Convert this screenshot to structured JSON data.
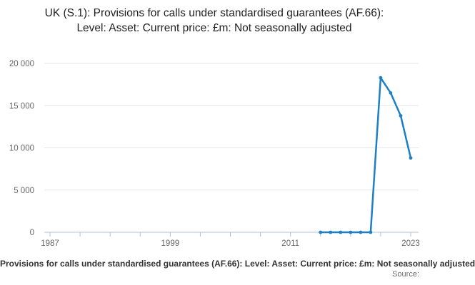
{
  "title": "UK (S.1): Provisions for calls under standardised guarantees (AF.66): Level: Asset: Current price: £m: Not seasonally adjusted",
  "footer": {
    "caption": "Provisions for calls under standardised guarantees (AF.66): Level: Asset: Current price: £m: Not seasonally adjusted",
    "source": "Source:"
  },
  "chart_data": {
    "type": "line",
    "title": "UK (S.1): Provisions for calls under standardised guarantees (AF.66): Level: Asset: Current price: £m: Not seasonally adjusted",
    "xlabel": "",
    "ylabel": "",
    "x": [
      2014,
      2015,
      2016,
      2017,
      2018,
      2019,
      2020,
      2021,
      2022,
      2023
    ],
    "values": [
      0,
      0,
      0,
      0,
      0,
      0,
      18300,
      16500,
      13800,
      8800
    ],
    "xlim": [
      1986.4,
      2023.8
    ],
    "ylim": [
      0,
      20000
    ],
    "x_ticks": [
      1987,
      1990,
      1993,
      1996,
      1999,
      2002,
      2005,
      2008,
      2011,
      2014,
      2017,
      2020,
      2023
    ],
    "x_axis_labels": [
      {
        "year": 1987,
        "label": "1987"
      },
      {
        "year": 1999,
        "label": "1999"
      },
      {
        "year": 2011,
        "label": "2011"
      },
      {
        "year": 2023,
        "label": "2023"
      }
    ],
    "y_ticks": [
      0,
      5000,
      10000,
      15000,
      20000
    ],
    "y_tick_labels": [
      "0",
      "5 000",
      "10 000",
      "15 000",
      "20 000"
    ],
    "grid": true,
    "legend": false,
    "marker": "circle",
    "line_color": "#1e80c4",
    "grid_color": "#e6e6e6",
    "axis_color": "#b1c3d3",
    "tick_label_color": "#666666"
  }
}
